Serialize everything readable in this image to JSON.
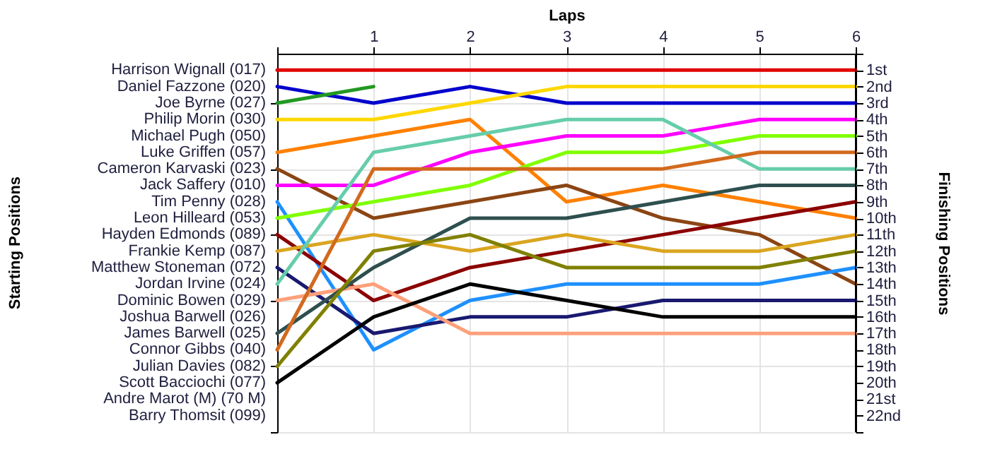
{
  "chart_data": {
    "type": "line",
    "xlabel": "Laps",
    "y2label": "Finishing Positions",
    "x": [
      0,
      1,
      2,
      3,
      4,
      5,
      6
    ],
    "xlim": [
      0,
      6
    ],
    "xticks": [
      {
        "value": 0,
        "label": null
      },
      1,
      2,
      3,
      4,
      5,
      6
    ],
    "annotations": [
      "Harrison Wignall (017)",
      "Daniel Fazzone (020)",
      "Joe Byrne (027)",
      "Philip Morin (030)",
      "Michael Pugh (050)",
      "Luke Griffen (057)",
      "Cameron Karvaski (023)",
      "Jack Saffery (010)",
      "Tim Penny (028)",
      "Leon Hilleard (053)",
      "Hayden Edmonds (089)",
      "Frankie Kemp (087)",
      "Matthew Stoneman (072)",
      "Jordan Irvine (024)",
      "Dominic Bowen (029)",
      "Joshua Barwell (026)",
      "James Barwell (025)",
      "Connor Gibbs (040)",
      "Julian Davies (082)",
      "Scott Bacciochi (077)",
      "Andre Marot  (M) (70 M)",
      "Barry Thomsit (099)",
      "Starting Positions"
    ],
    "y2lim": [
      23,
      0
    ],
    "y2ticks": [
      {
        "value": 0,
        "label": null
      },
      {
        "value": 1,
        "label": "1st"
      },
      {
        "value": 2,
        "label": "2nd"
      },
      {
        "value": 3,
        "label": "3rd"
      },
      {
        "value": 4,
        "label": "4th"
      },
      {
        "value": 5,
        "label": "5th"
      },
      {
        "value": 6,
        "label": "6th"
      },
      {
        "value": 7,
        "label": "7th"
      },
      {
        "value": 8,
        "label": "8th"
      },
      {
        "value": 9,
        "label": "9th"
      },
      {
        "value": 10,
        "label": "10th"
      },
      {
        "value": 11,
        "label": "11th"
      },
      {
        "value": 12,
        "label": "12th"
      },
      {
        "value": 13,
        "label": "13th"
      },
      {
        "value": 14,
        "label": "14th"
      },
      {
        "value": 15,
        "label": "15th"
      },
      {
        "value": 16,
        "label": "16th"
      },
      {
        "value": 17,
        "label": "17th"
      },
      {
        "value": 18,
        "label": "18th"
      },
      {
        "value": 19,
        "label": "19th"
      },
      {
        "value": 20,
        "label": "20th"
      },
      {
        "value": 21,
        "label": "21st"
      },
      {
        "value": 22,
        "label": "22nd"
      },
      {
        "value": 23,
        "label": null
      }
    ],
    "grid": true,
    "legend": false,
    "marker": "none",
    "line_style": "solid",
    "series": [
      {
        "axis": "y2",
        "color": "#e00000",
        "values": [
          1,
          1,
          1,
          1,
          1,
          1,
          1
        ]
      },
      {
        "axis": "y2",
        "color": "#0000cc",
        "values": [
          2,
          3,
          2,
          3,
          3,
          3,
          3
        ]
      },
      {
        "axis": "y2",
        "color": "#229922",
        "values": [
          3,
          2,
          null,
          null,
          null,
          null,
          null
        ]
      },
      {
        "axis": "y2",
        "color": "#ffd700",
        "values": [
          4,
          4,
          3,
          2,
          2,
          2,
          2
        ]
      },
      {
        "axis": "y2",
        "color": "#ff8000",
        "values": [
          6,
          5,
          4,
          9,
          8,
          9,
          10
        ]
      },
      {
        "axis": "y2",
        "color": "#8b4513",
        "values": [
          7,
          10,
          9,
          8,
          10,
          11,
          14
        ]
      },
      {
        "axis": "y2",
        "color": "#ff00ff",
        "values": [
          8,
          8,
          6,
          5,
          5,
          4,
          4
        ]
      },
      {
        "axis": "y2",
        "color": "#1e90ff",
        "values": [
          9,
          18,
          15,
          14,
          14,
          14,
          13
        ]
      },
      {
        "axis": "y2",
        "color": "#80ff00",
        "values": [
          10,
          9,
          8,
          6,
          6,
          5,
          5
        ]
      },
      {
        "axis": "y2",
        "color": "#8b0000",
        "values": [
          11,
          15,
          13,
          12,
          11,
          10,
          9
        ]
      },
      {
        "axis": "y2",
        "color": "#daa520",
        "values": [
          12,
          11,
          12,
          11,
          12,
          12,
          11
        ]
      },
      {
        "axis": "y2",
        "color": "#191970",
        "values": [
          13,
          17,
          16,
          16,
          15,
          15,
          15
        ]
      },
      {
        "axis": "y2",
        "color": "#66cdaa",
        "values": [
          14,
          6,
          5,
          4,
          4,
          7,
          7
        ]
      },
      {
        "axis": "y2",
        "color": "#ffa07a",
        "values": [
          15,
          14,
          17,
          17,
          17,
          17,
          17
        ]
      },
      {
        "axis": "y2",
        "color": "#2f4f4f",
        "values": [
          17,
          13,
          10,
          10,
          9,
          8,
          8
        ]
      },
      {
        "axis": "y2",
        "color": "#d2691e",
        "values": [
          18,
          7,
          7,
          7,
          7,
          6,
          6
        ]
      },
      {
        "axis": "y2",
        "color": "#808000",
        "values": [
          19,
          12,
          11,
          13,
          13,
          13,
          12
        ]
      },
      {
        "axis": "y2",
        "color": "#000000",
        "values": [
          20,
          16,
          14,
          15,
          16,
          16,
          16
        ]
      }
    ]
  }
}
